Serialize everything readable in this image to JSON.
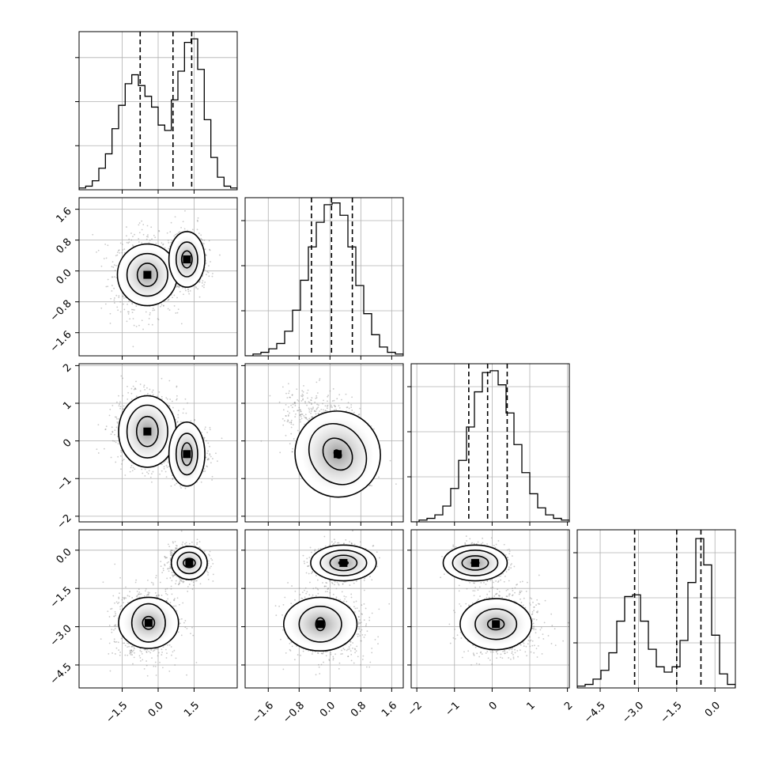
{
  "chart_data": {
    "type": "corner",
    "grid": true,
    "parameters": 4,
    "axis_ranges": [
      [
        -3.3,
        3.3
      ],
      [
        -2.2,
        1.9
      ],
      [
        -2.15,
        2.05
      ],
      [
        -5.4,
        0.8
      ]
    ],
    "ticks": [
      {
        "values": [
          -1.5,
          0.0,
          1.5
        ],
        "labels": [
          "−1.5",
          "0.0",
          "1.5"
        ]
      },
      {
        "values": [
          -1.6,
          -0.8,
          0.0,
          0.8,
          1.6
        ],
        "labels": [
          "−1.6",
          "−0.8",
          "0.0",
          "0.8",
          "1.6"
        ]
      },
      {
        "values": [
          -2,
          -1,
          0,
          1,
          2
        ],
        "labels": [
          "−2",
          "−1",
          "0",
          "1",
          "2"
        ]
      },
      {
        "values": [
          -4.5,
          -3.0,
          -1.5,
          0.0
        ],
        "labels": [
          "−4.5",
          "−3.0",
          "−1.5",
          "0.0"
        ]
      }
    ],
    "quantiles": [
      [
        -0.75,
        0.62,
        1.4
      ],
      [
        -0.48,
        0.04,
        0.58
      ],
      [
        -0.62,
        -0.12,
        0.4
      ],
      [
        -3.15,
        -1.5,
        -0.55
      ]
    ],
    "histograms": [
      {
        "edges_range": [
          -3.3,
          3.3
        ],
        "counts": [
          1,
          2,
          5,
          12,
          20,
          34,
          47,
          59,
          64,
          58,
          52,
          46,
          36,
          33,
          50,
          66,
          82,
          84,
          67,
          39,
          18,
          7,
          2,
          1
        ],
        "max_count": 88
      },
      {
        "edges_range": [
          -2.2,
          1.9
        ],
        "counts": [
          0,
          1,
          2,
          4,
          7,
          14,
          26,
          43,
          62,
          76,
          86,
          87,
          80,
          62,
          40,
          24,
          12,
          5,
          2,
          1
        ],
        "max_count": 90
      },
      {
        "edges_range": [
          -2.15,
          2.05
        ],
        "counts": [
          0,
          1,
          2,
          4,
          9,
          19,
          35,
          54,
          74,
          85,
          86,
          78,
          62,
          44,
          28,
          16,
          8,
          4,
          2,
          1
        ],
        "max_count": 90
      },
      {
        "edges_range": [
          -5.4,
          0.8
        ],
        "counts": [
          1,
          2,
          5,
          10,
          20,
          38,
          52,
          53,
          38,
          22,
          12,
          9,
          12,
          27,
          60,
          85,
          70,
          30,
          8,
          2
        ],
        "max_count": 90
      }
    ],
    "clusters": [
      {
        "mean": [
          -0.5,
          -0.1,
          0.25,
          -2.9
        ],
        "sd": [
          0.6,
          0.45,
          0.45,
          0.6
        ],
        "weight": 0.45
      },
      {
        "mean": [
          1.2,
          0.3,
          -0.35,
          -0.5
        ],
        "sd": [
          0.35,
          0.3,
          0.3,
          0.3
        ],
        "weight": 0.55
      }
    ],
    "contours": {
      "0_1": [
        {
          "cx": -0.45,
          "cy": -0.1,
          "rx": [
            0.42,
            0.85,
            1.25
          ],
          "ry": [
            0.3,
            0.55,
            0.8
          ]
        },
        {
          "cx": 1.2,
          "cy": 0.3,
          "rx": [
            0.22,
            0.45,
            0.75
          ],
          "ry": [
            0.22,
            0.45,
            0.72
          ]
        }
      ],
      "0_2": [
        {
          "cx": -0.45,
          "cy": 0.25,
          "rx": [
            0.45,
            0.85,
            1.2
          ],
          "ry": [
            0.4,
            0.7,
            0.95
          ]
        },
        {
          "cx": 1.2,
          "cy": -0.35,
          "rx": [
            0.22,
            0.45,
            0.75
          ],
          "ry": [
            0.3,
            0.55,
            0.85
          ]
        }
      ],
      "0_3": [
        {
          "cx": -0.4,
          "cy": -2.85,
          "rx": [
            0.25,
            0.7,
            1.25
          ],
          "ry": [
            0.25,
            0.75,
            1.0
          ]
        },
        {
          "cx": 1.3,
          "cy": -0.5,
          "rx": [
            0.25,
            0.5,
            0.75
          ],
          "ry": [
            0.18,
            0.42,
            0.65
          ]
        }
      ],
      "1_2": [
        {
          "cx": 0.2,
          "cy": -0.35,
          "rx": [
            0.08,
            0.35,
            0.7,
            1.1
          ],
          "ry": [
            0.12,
            0.45,
            0.85,
            1.15
          ],
          "tilt": -35
        }
      ],
      "1_3": [
        {
          "cx": -0.25,
          "cy": -2.9,
          "rx": [
            0.12,
            0.55,
            0.95
          ],
          "ry": [
            0.25,
            0.7,
            1.05
          ]
        },
        {
          "cx": 0.35,
          "cy": -0.5,
          "rx": [
            0.12,
            0.35,
            0.6,
            0.85
          ],
          "ry": [
            0.08,
            0.3,
            0.5,
            0.7
          ]
        }
      ],
      "2_3": [
        {
          "cx": 0.1,
          "cy": -2.9,
          "rx": [
            0.22,
            0.55,
            0.95
          ],
          "ry": [
            0.22,
            0.6,
            1.0
          ]
        },
        {
          "cx": -0.45,
          "cy": -0.5,
          "rx": [
            0.1,
            0.35,
            0.6,
            0.85
          ],
          "ry": [
            0.08,
            0.28,
            0.5,
            0.7
          ]
        }
      ]
    }
  }
}
